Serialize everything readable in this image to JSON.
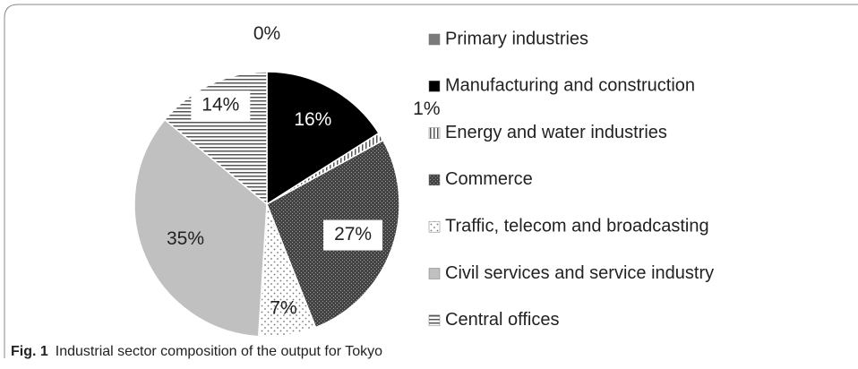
{
  "chart_data": {
    "type": "pie",
    "categories": [
      "Primary industries",
      "Manufacturing and construction",
      "Energy and water industries",
      "Commerce",
      "Traffic, telecom and broadcasting",
      "Civil services and service industry",
      "Central offices"
    ],
    "values": [
      0,
      16,
      1,
      27,
      7,
      35,
      14
    ],
    "value_labels": [
      "0%",
      "16%",
      "1%",
      "27%",
      "7%",
      "35%",
      "14%"
    ],
    "colors": [
      "#7a7a7a",
      "#000000",
      "#ffffff",
      "#555555",
      "#ffffff",
      "#c0c0c0",
      "#ffffff"
    ],
    "legend": "right",
    "caption_label": "Fig. 1",
    "caption": "Industrial sector composition of the output for Tokyo"
  }
}
